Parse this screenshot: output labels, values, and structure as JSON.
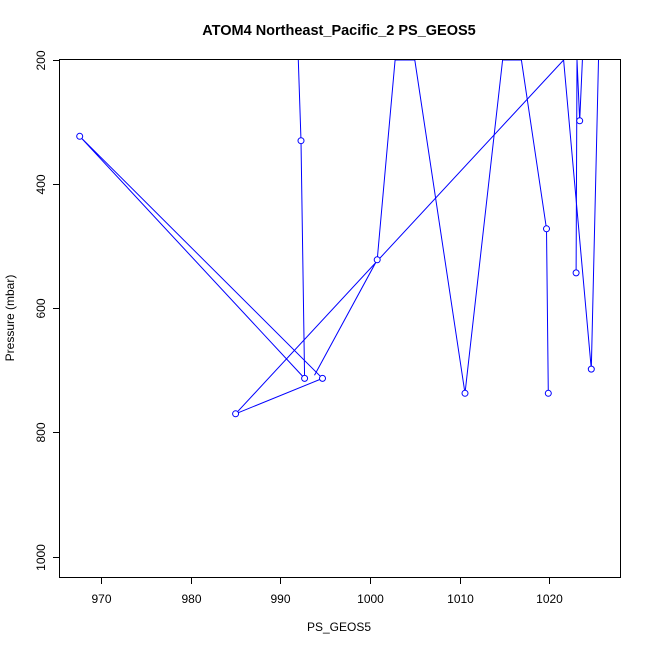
{
  "chart_data": {
    "type": "line",
    "title": "ATOM4 Northeast_Pacific_2 PS_GEOS5",
    "xlabel": "PS_GEOS5",
    "ylabel": "Pressure (mbar)",
    "xlim": [
      965.4,
      1027.9
    ],
    "ylim": [
      1033,
      200
    ],
    "y_reversed": true,
    "x_ticks": [
      970,
      980,
      990,
      1000,
      1010,
      1020
    ],
    "y_ticks": [
      200,
      400,
      600,
      800,
      1000
    ],
    "grid": false,
    "legend": "none",
    "series": [
      {
        "color": "#0000ff",
        "marker": "open-circle",
        "x": [
          992.0,
          992.3,
          992.7,
          967.6,
          994.7,
          985.0,
          1021.6,
          1024.7,
          1025.5
        ],
        "y": [
          200,
          330,
          713,
          323,
          713,
          770,
          200,
          698,
          200
        ],
        "markers": [
          false,
          true,
          true,
          true,
          true,
          true,
          false,
          true,
          false
        ]
      },
      {
        "color": "#0000ff",
        "marker": "open-circle",
        "x": [
          993.8,
          1000.8,
          1002.8,
          1005.0,
          1010.6,
          1014.8,
          1016.9,
          1019.7,
          1019.9
        ],
        "y": [
          708,
          522,
          200,
          200,
          737,
          200,
          200,
          472,
          737
        ],
        "markers": [
          false,
          true,
          false,
          false,
          true,
          false,
          false,
          true,
          true
        ]
      },
      {
        "color": "#0000ff",
        "marker": "open-circle",
        "x": [
          1023.0,
          1023.1,
          1023.4,
          1023.7
        ],
        "y": [
          543,
          200,
          298,
          200
        ],
        "markers": [
          true,
          false,
          true,
          false
        ]
      }
    ]
  }
}
